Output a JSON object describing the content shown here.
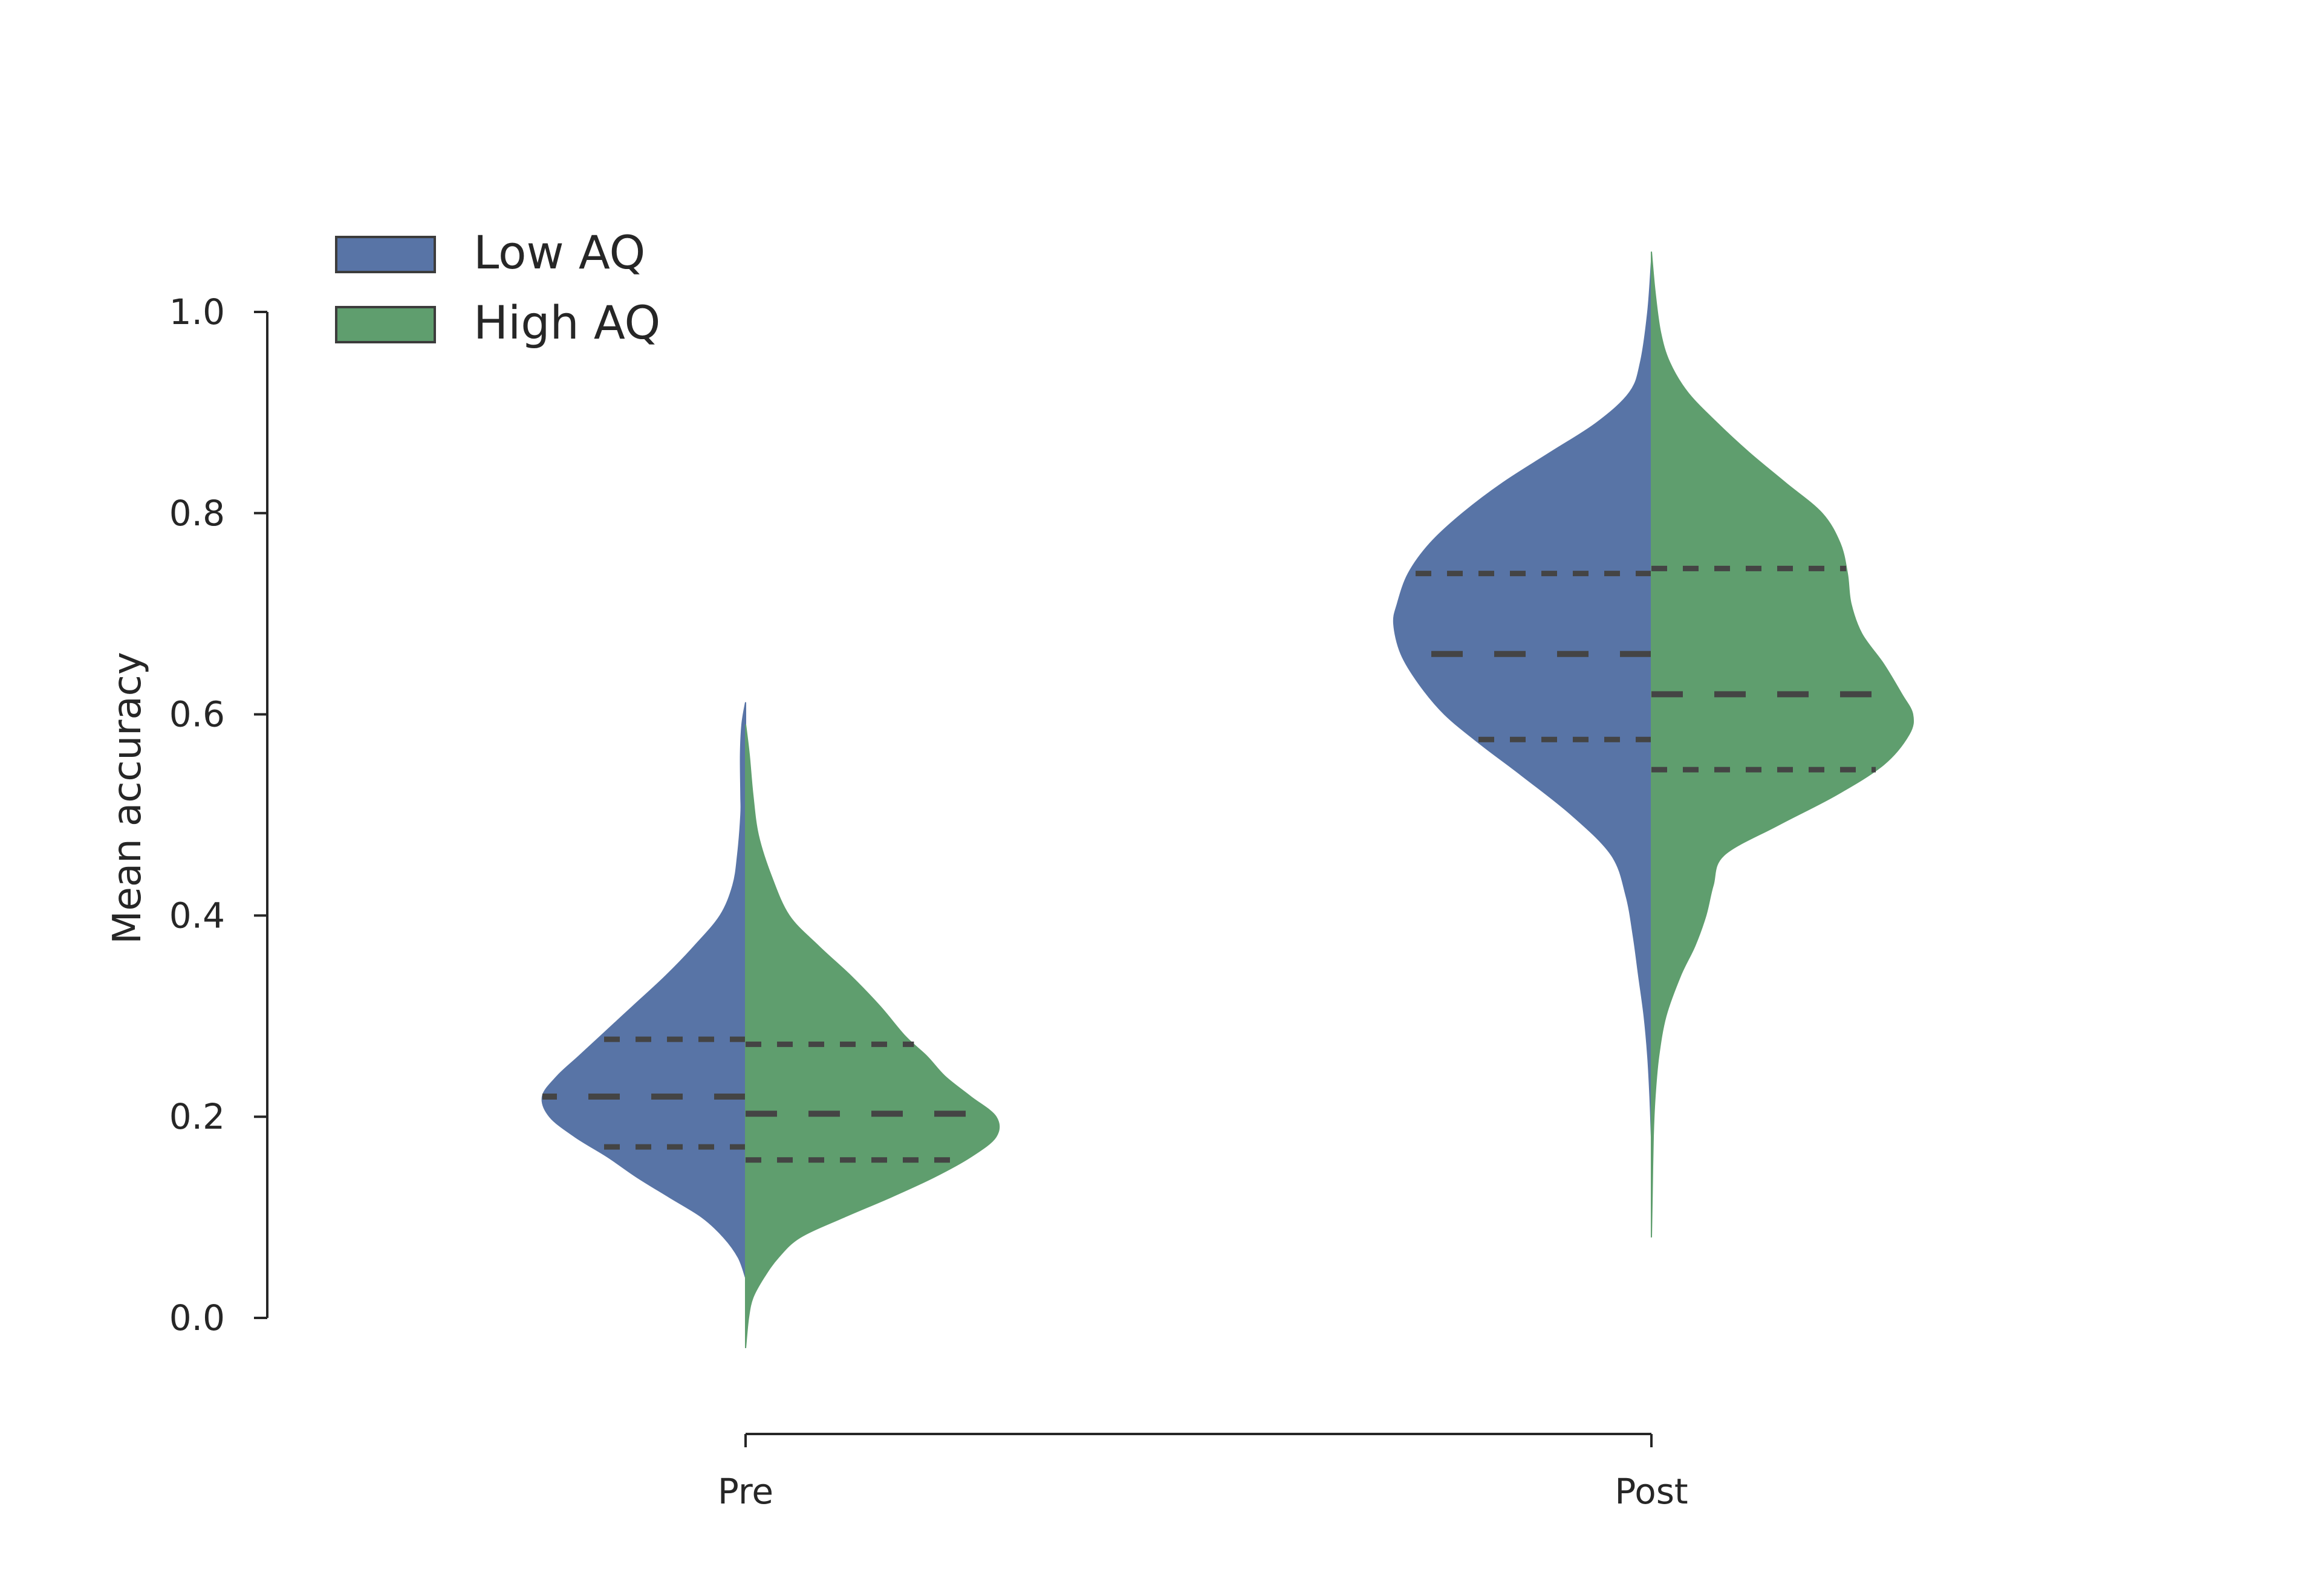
{
  "chart_data": {
    "type": "violin",
    "split": true,
    "categories": [
      "Pre",
      "Post"
    ],
    "ylabel": "Mean accuracy",
    "xlabel": "",
    "ylim": [
      -0.05,
      1.07
    ],
    "yticks": [
      "0.0",
      "0.2",
      "0.4",
      "0.6",
      "0.8",
      "1.0"
    ],
    "legend": {
      "position": "top-left"
    },
    "series": [
      {
        "name": "Low AQ",
        "color": "#5874a6",
        "groups": [
          {
            "category": "Pre",
            "quartiles": {
              "q1": 0.17,
              "median": 0.22,
              "q3": 0.277
            },
            "density": [
              [
                0.612,
                0.0
              ],
              [
                0.59,
                0.01
              ],
              [
                0.56,
                0.014
              ],
              [
                0.52,
                0.013
              ],
              [
                0.5,
                0.013
              ],
              [
                0.46,
                0.022
              ],
              [
                0.43,
                0.035
              ],
              [
                0.4,
                0.07
              ],
              [
                0.37,
                0.14
              ],
              [
                0.34,
                0.22
              ],
              [
                0.31,
                0.31
              ],
              [
                0.28,
                0.4
              ],
              [
                0.26,
                0.46
              ],
              [
                0.24,
                0.52
              ],
              [
                0.22,
                0.56
              ],
              [
                0.2,
                0.54
              ],
              [
                0.18,
                0.47
              ],
              [
                0.16,
                0.38
              ],
              [
                0.14,
                0.3
              ],
              [
                0.12,
                0.21
              ],
              [
                0.1,
                0.12
              ],
              [
                0.08,
                0.06
              ],
              [
                0.06,
                0.02
              ],
              [
                0.04,
                0.0
              ]
            ]
          },
          {
            "category": "Post",
            "quartiles": {
              "q1": 0.575,
              "median": 0.66,
              "q3": 0.74
            },
            "density": [
              [
                1.05,
                0.0
              ],
              [
                1.0,
                0.01
              ],
              [
                0.95,
                0.03
              ],
              [
                0.92,
                0.06
              ],
              [
                0.89,
                0.15
              ],
              [
                0.86,
                0.28
              ],
              [
                0.83,
                0.41
              ],
              [
                0.8,
                0.52
              ],
              [
                0.77,
                0.61
              ],
              [
                0.74,
                0.67
              ],
              [
                0.71,
                0.7
              ],
              [
                0.69,
                0.71
              ],
              [
                0.66,
                0.69
              ],
              [
                0.63,
                0.64
              ],
              [
                0.6,
                0.57
              ],
              [
                0.57,
                0.47
              ],
              [
                0.54,
                0.36
              ],
              [
                0.5,
                0.22
              ],
              [
                0.46,
                0.11
              ],
              [
                0.42,
                0.07
              ],
              [
                0.38,
                0.05
              ],
              [
                0.34,
                0.035
              ],
              [
                0.3,
                0.02
              ],
              [
                0.26,
                0.01
              ],
              [
                0.22,
                0.004
              ],
              [
                0.18,
                0.0
              ]
            ]
          }
        ]
      },
      {
        "name": "High AQ",
        "color": "#5f9e6e",
        "groups": [
          {
            "category": "Pre",
            "quartiles": {
              "q1": 0.157,
              "median": 0.203,
              "q3": 0.272
            },
            "density": [
              [
                0.59,
                0.0
              ],
              [
                0.56,
                0.01
              ],
              [
                0.52,
                0.02
              ],
              [
                0.48,
                0.035
              ],
              [
                0.44,
                0.07
              ],
              [
                0.4,
                0.12
              ],
              [
                0.37,
                0.2
              ],
              [
                0.34,
                0.29
              ],
              [
                0.31,
                0.37
              ],
              [
                0.28,
                0.44
              ],
              [
                0.26,
                0.5
              ],
              [
                0.24,
                0.55
              ],
              [
                0.22,
                0.62
              ],
              [
                0.2,
                0.69
              ],
              [
                0.18,
                0.69
              ],
              [
                0.16,
                0.62
              ],
              [
                0.14,
                0.52
              ],
              [
                0.12,
                0.4
              ],
              [
                0.1,
                0.27
              ],
              [
                0.08,
                0.15
              ],
              [
                0.06,
                0.09
              ],
              [
                0.04,
                0.05
              ],
              [
                0.02,
                0.02
              ],
              [
                0.0,
                0.008
              ],
              [
                -0.03,
                0.0
              ]
            ]
          },
          {
            "category": "Post",
            "quartiles": {
              "q1": 0.545,
              "median": 0.62,
              "q3": 0.745
            },
            "density": [
              [
                1.06,
                0.0
              ],
              [
                1.02,
                0.01
              ],
              [
                0.98,
                0.025
              ],
              [
                0.95,
                0.05
              ],
              [
                0.92,
                0.1
              ],
              [
                0.89,
                0.18
              ],
              [
                0.86,
                0.27
              ],
              [
                0.83,
                0.37
              ],
              [
                0.8,
                0.47
              ],
              [
                0.77,
                0.52
              ],
              [
                0.74,
                0.54
              ],
              [
                0.71,
                0.55
              ],
              [
                0.68,
                0.58
              ],
              [
                0.65,
                0.64
              ],
              [
                0.62,
                0.69
              ],
              [
                0.6,
                0.72
              ],
              [
                0.58,
                0.71
              ],
              [
                0.55,
                0.64
              ],
              [
                0.52,
                0.51
              ],
              [
                0.49,
                0.35
              ],
              [
                0.46,
                0.2
              ],
              [
                0.43,
                0.17
              ],
              [
                0.4,
                0.15
              ],
              [
                0.37,
                0.12
              ],
              [
                0.34,
                0.08
              ],
              [
                0.3,
                0.04
              ],
              [
                0.26,
                0.02
              ],
              [
                0.22,
                0.01
              ],
              [
                0.18,
                0.005
              ],
              [
                0.12,
                0.002
              ],
              [
                0.08,
                0.0
              ]
            ]
          }
        ]
      }
    ]
  }
}
